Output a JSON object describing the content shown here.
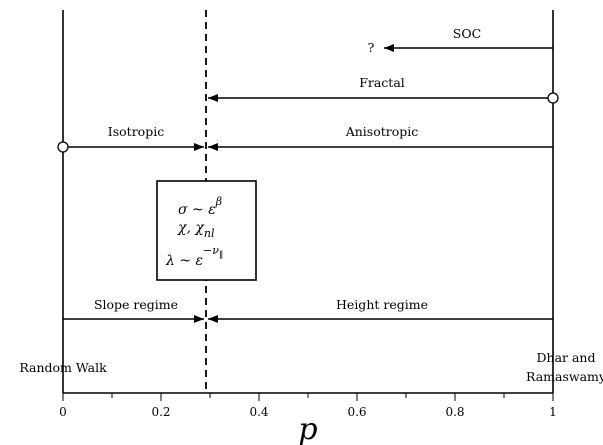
{
  "diagram": {
    "axis": {
      "label": "p",
      "ticks": [
        "0",
        "0.2",
        "0.4",
        "0.6",
        "0.8",
        "1"
      ]
    },
    "critical_line_p": 0.29,
    "arrows": [
      {
        "label": "SOC",
        "end_label": "?"
      },
      {
        "label": "Fractal"
      },
      {
        "label": "Isotropic"
      },
      {
        "label": "Anisotropic"
      },
      {
        "label": "Slope regime"
      },
      {
        "label": "Height regime"
      }
    ],
    "endpoints": {
      "left": "Random Walk",
      "right_line1": "Dhar and",
      "right_line2": "Ramaswamy"
    },
    "box": {
      "sigma_lhs": "σ ~ ε",
      "sigma_exp": "β",
      "chi": "χ, χ",
      "chi_sub": "nl",
      "lambda_lhs": "λ ~ ε",
      "lambda_exp": "−ν",
      "lambda_exp_sub": "∥"
    }
  }
}
